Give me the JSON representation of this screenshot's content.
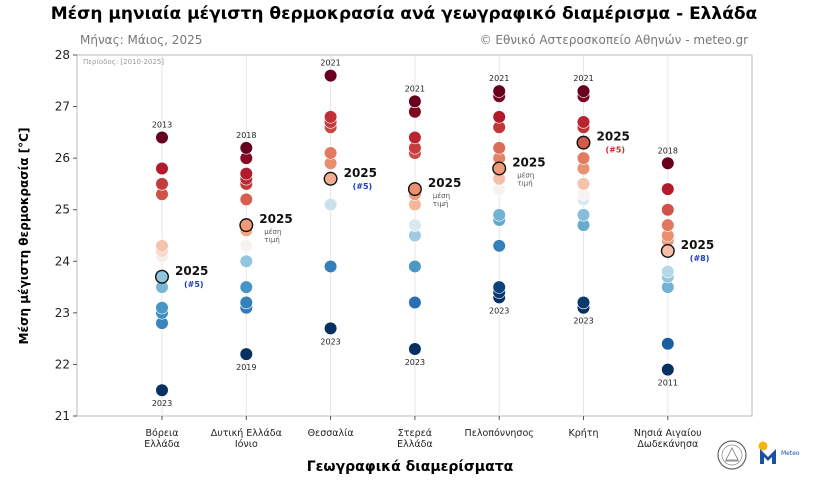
{
  "chart_data": {
    "type": "scatter",
    "title": "Μέση μηνιαία μέγιστη θερμοκρασία ανά γεωγραφικό διαμέρισμα - Ελλάδα",
    "subtitle": "Μήνας: Μάιος, 2025",
    "credit": "© Εθνικό Αστεροσκοπείο Αθηνών - meteo.gr",
    "period_note": "Περίοδος: [2010-2025]",
    "xlabel": "Γεωγραφικά διαμερίσματα",
    "ylabel": "Μέση μέγιστη θερμοκρασία [°C]",
    "ylim": [
      21,
      28
    ],
    "yticks": [
      21,
      22,
      23,
      24,
      25,
      26,
      27,
      28
    ],
    "grid": "vertical",
    "logo_text": "Meteo",
    "categories": [
      {
        "label_lines": [
          "Βόρεια",
          "Ελλάδα"
        ],
        "values": [
          26.4,
          25.8,
          25.5,
          25.3,
          24.3,
          24.2,
          24.1,
          23.7,
          23.5,
          23.1,
          23.0,
          22.8,
          21.5
        ],
        "year_2025": 23.7,
        "max_label": "2013",
        "max_value": 26.4,
        "min_label": "2023",
        "min_value": 21.5,
        "label_2025": "2025",
        "annotation": "(#5)",
        "annotation_color": "#1f3cc0"
      },
      {
        "label_lines": [
          "Δυτική Ελλάδα",
          "Ιόνιο"
        ],
        "values": [
          26.2,
          26.0,
          25.7,
          25.6,
          25.5,
          25.2,
          24.7,
          24.6,
          24.3,
          24.0,
          23.5,
          23.2,
          23.1,
          22.2
        ],
        "year_2025": 24.7,
        "max_label": "2018",
        "max_value": 26.2,
        "min_label": "2019",
        "min_value": 22.2,
        "label_2025": "2025",
        "annotation": "μέση τιμή",
        "annotation_color": "#555555"
      },
      {
        "label_lines": [
          "Θεσσαλία"
        ],
        "values": [
          27.6,
          26.8,
          26.7,
          26.6,
          26.1,
          25.9,
          25.6,
          25.1,
          23.9,
          22.7
        ],
        "year_2025": 25.6,
        "max_label": "2021",
        "max_value": 27.6,
        "min_label": "2023",
        "min_value": 22.7,
        "label_2025": "2025",
        "annotation": "(#5)",
        "annotation_color": "#1f3cc0"
      },
      {
        "label_lines": [
          "Στερεά",
          "Ελλάδα"
        ],
        "values": [
          27.1,
          26.9,
          26.4,
          26.2,
          26.1,
          25.4,
          25.3,
          25.1,
          24.7,
          24.5,
          23.9,
          23.2,
          22.3
        ],
        "year_2025": 25.4,
        "max_label": "2021",
        "max_value": 27.1,
        "min_label": "2023",
        "min_value": 22.3,
        "label_2025": "2025",
        "annotation": "μέση τιμή",
        "annotation_color": "#555555"
      },
      {
        "label_lines": [
          "Πελοπόννησος"
        ],
        "values": [
          27.3,
          27.2,
          26.8,
          26.6,
          26.2,
          26.0,
          25.8,
          25.6,
          25.4,
          24.9,
          24.8,
          24.3,
          23.5,
          23.4,
          23.3
        ],
        "year_2025": 25.8,
        "max_label": "2021",
        "max_value": 27.3,
        "min_label": "2023",
        "min_value": 23.3,
        "label_2025": "2025",
        "annotation": "μέση τιμή",
        "annotation_color": "#555555"
      },
      {
        "label_lines": [
          "Κρήτη"
        ],
        "values": [
          27.3,
          27.2,
          26.7,
          26.6,
          26.3,
          26.0,
          25.8,
          25.5,
          25.3,
          25.2,
          24.9,
          24.7,
          23.2,
          23.1
        ],
        "year_2025": 26.3,
        "max_label": "2021",
        "max_value": 27.3,
        "min_label": "2023",
        "min_value": 23.1,
        "label_2025": "2025",
        "annotation": "(#5)",
        "annotation_color": "#d02a2a"
      },
      {
        "label_lines": [
          "Νησιά Αιγαίου",
          "Δωδεκάνησα"
        ],
        "values": [
          25.9,
          25.4,
          25.0,
          24.7,
          24.5,
          24.4,
          24.2,
          23.8,
          23.7,
          23.5,
          22.4,
          21.9
        ],
        "year_2025": 24.2,
        "max_label": "2018",
        "max_value": 25.9,
        "min_label": "2011",
        "min_value": 21.9,
        "label_2025": "2025",
        "annotation": "(#8)",
        "annotation_color": "#1f3cc0"
      }
    ]
  }
}
